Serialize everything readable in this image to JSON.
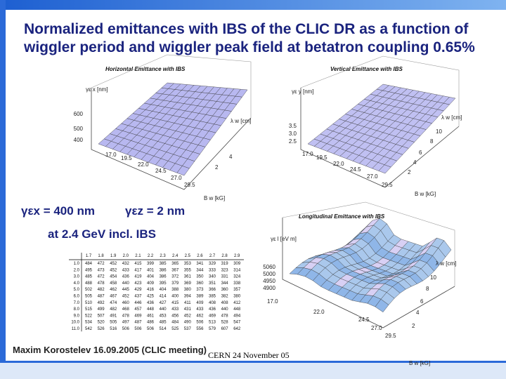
{
  "title": [
    "Normalized emittances with IBS of the CLIC DR as a function of",
    "wiggler period and wiggler peak field at betatron coupling 0.65%"
  ],
  "plots": [
    {
      "title": "Horizontal Emittance  with IBS",
      "z_label": "γε x [nm]",
      "z_ticks": [
        "600",
        "500",
        "400"
      ],
      "x_label": "B w [kG]",
      "x_ticks": [
        "17.0",
        "19.5",
        "22.0",
        "24.5",
        "27.0",
        "29.5"
      ],
      "y_label": "λ w [cm]",
      "y_ticks": [
        "2",
        "4"
      ]
    },
    {
      "title": "Vertical Emittance  with IBS",
      "z_label": "γε y [nm]",
      "z_ticks": [
        "3.5",
        "3.0",
        "2.5"
      ],
      "x_label": "B w [kG]",
      "x_ticks": [
        "17.0",
        "19.5",
        "22.0",
        "24.5",
        "27.0",
        "29.5"
      ],
      "y_label": "λ w [cm]",
      "y_ticks": [
        "2",
        "4",
        "6",
        "8",
        "10"
      ]
    },
    {
      "title": "Longitudinal Emittance  with IBS",
      "z_label": "γε l [eV m]",
      "z_ticks": [
        "5060",
        "5000",
        "4950",
        "4900"
      ],
      "x_label": "B w [kG]",
      "x_ticks": [
        "17.0",
        "22.0",
        "24.5",
        "27.0",
        "29.5"
      ],
      "y_label": "λ w [cm]",
      "y_ticks": [
        "2",
        "4",
        "6",
        "8",
        "10"
      ]
    }
  ],
  "summary": [
    "γεx = 400 nm",
    "γεz = 2 nm",
    "at 2.4 GeV incl. IBS"
  ],
  "table": {
    "header": [
      "1.7",
      "1.8",
      "1.9",
      "2.0",
      "2.1",
      "2.2",
      "2.3",
      "2.4",
      "2.5",
      "2.6",
      "2.7",
      "2.8",
      "2.9"
    ],
    "row_labels": [
      "1.0",
      "2.0",
      "3.0",
      "4.0",
      "5.0",
      "6.0",
      "7.0",
      "8.0",
      "9.0",
      "10.0",
      "11.0"
    ],
    "rows": [
      [
        484,
        472,
        452,
        432,
        415,
        399,
        385,
        365,
        353,
        341,
        329,
        319,
        309
      ],
      [
        495,
        473,
        452,
        433,
        417,
        401,
        386,
        367,
        355,
        344,
        333,
        323,
        314
      ],
      [
        485,
        472,
        454,
        436,
        419,
        404,
        386,
        372,
        361,
        350,
        340,
        331,
        324
      ],
      [
        488,
        478,
        458,
        440,
        423,
        409,
        395,
        379,
        369,
        360,
        351,
        344,
        338
      ],
      [
        502,
        482,
        462,
        445,
        429,
        416,
        404,
        388,
        380,
        373,
        366,
        360,
        357
      ],
      [
        505,
        487,
        467,
        452,
        437,
        425,
        414,
        400,
        394,
        389,
        385,
        382,
        380
      ],
      [
        510,
        492,
        474,
        460,
        446,
        436,
        427,
        415,
        411,
        409,
        408,
        408,
        412
      ],
      [
        515,
        499,
        482,
        468,
        457,
        448,
        440,
        433,
        431,
        433,
        436,
        440,
        448
      ],
      [
        522,
        507,
        491,
        478,
        469,
        461,
        453,
        456,
        452,
        462,
        469,
        478,
        494
      ],
      [
        534,
        520,
        505,
        497,
        487,
        486,
        485,
        484,
        490,
        506,
        513,
        528,
        547
      ],
      [
        542,
        526,
        516,
        506,
        506,
        506,
        514,
        525,
        537,
        556,
        579,
        607,
        642
      ]
    ]
  },
  "footer": {
    "author": "Maxim Korostelev 16.09.2005 (CLIC meeting)",
    "date": "CERN 24 November 05"
  }
}
